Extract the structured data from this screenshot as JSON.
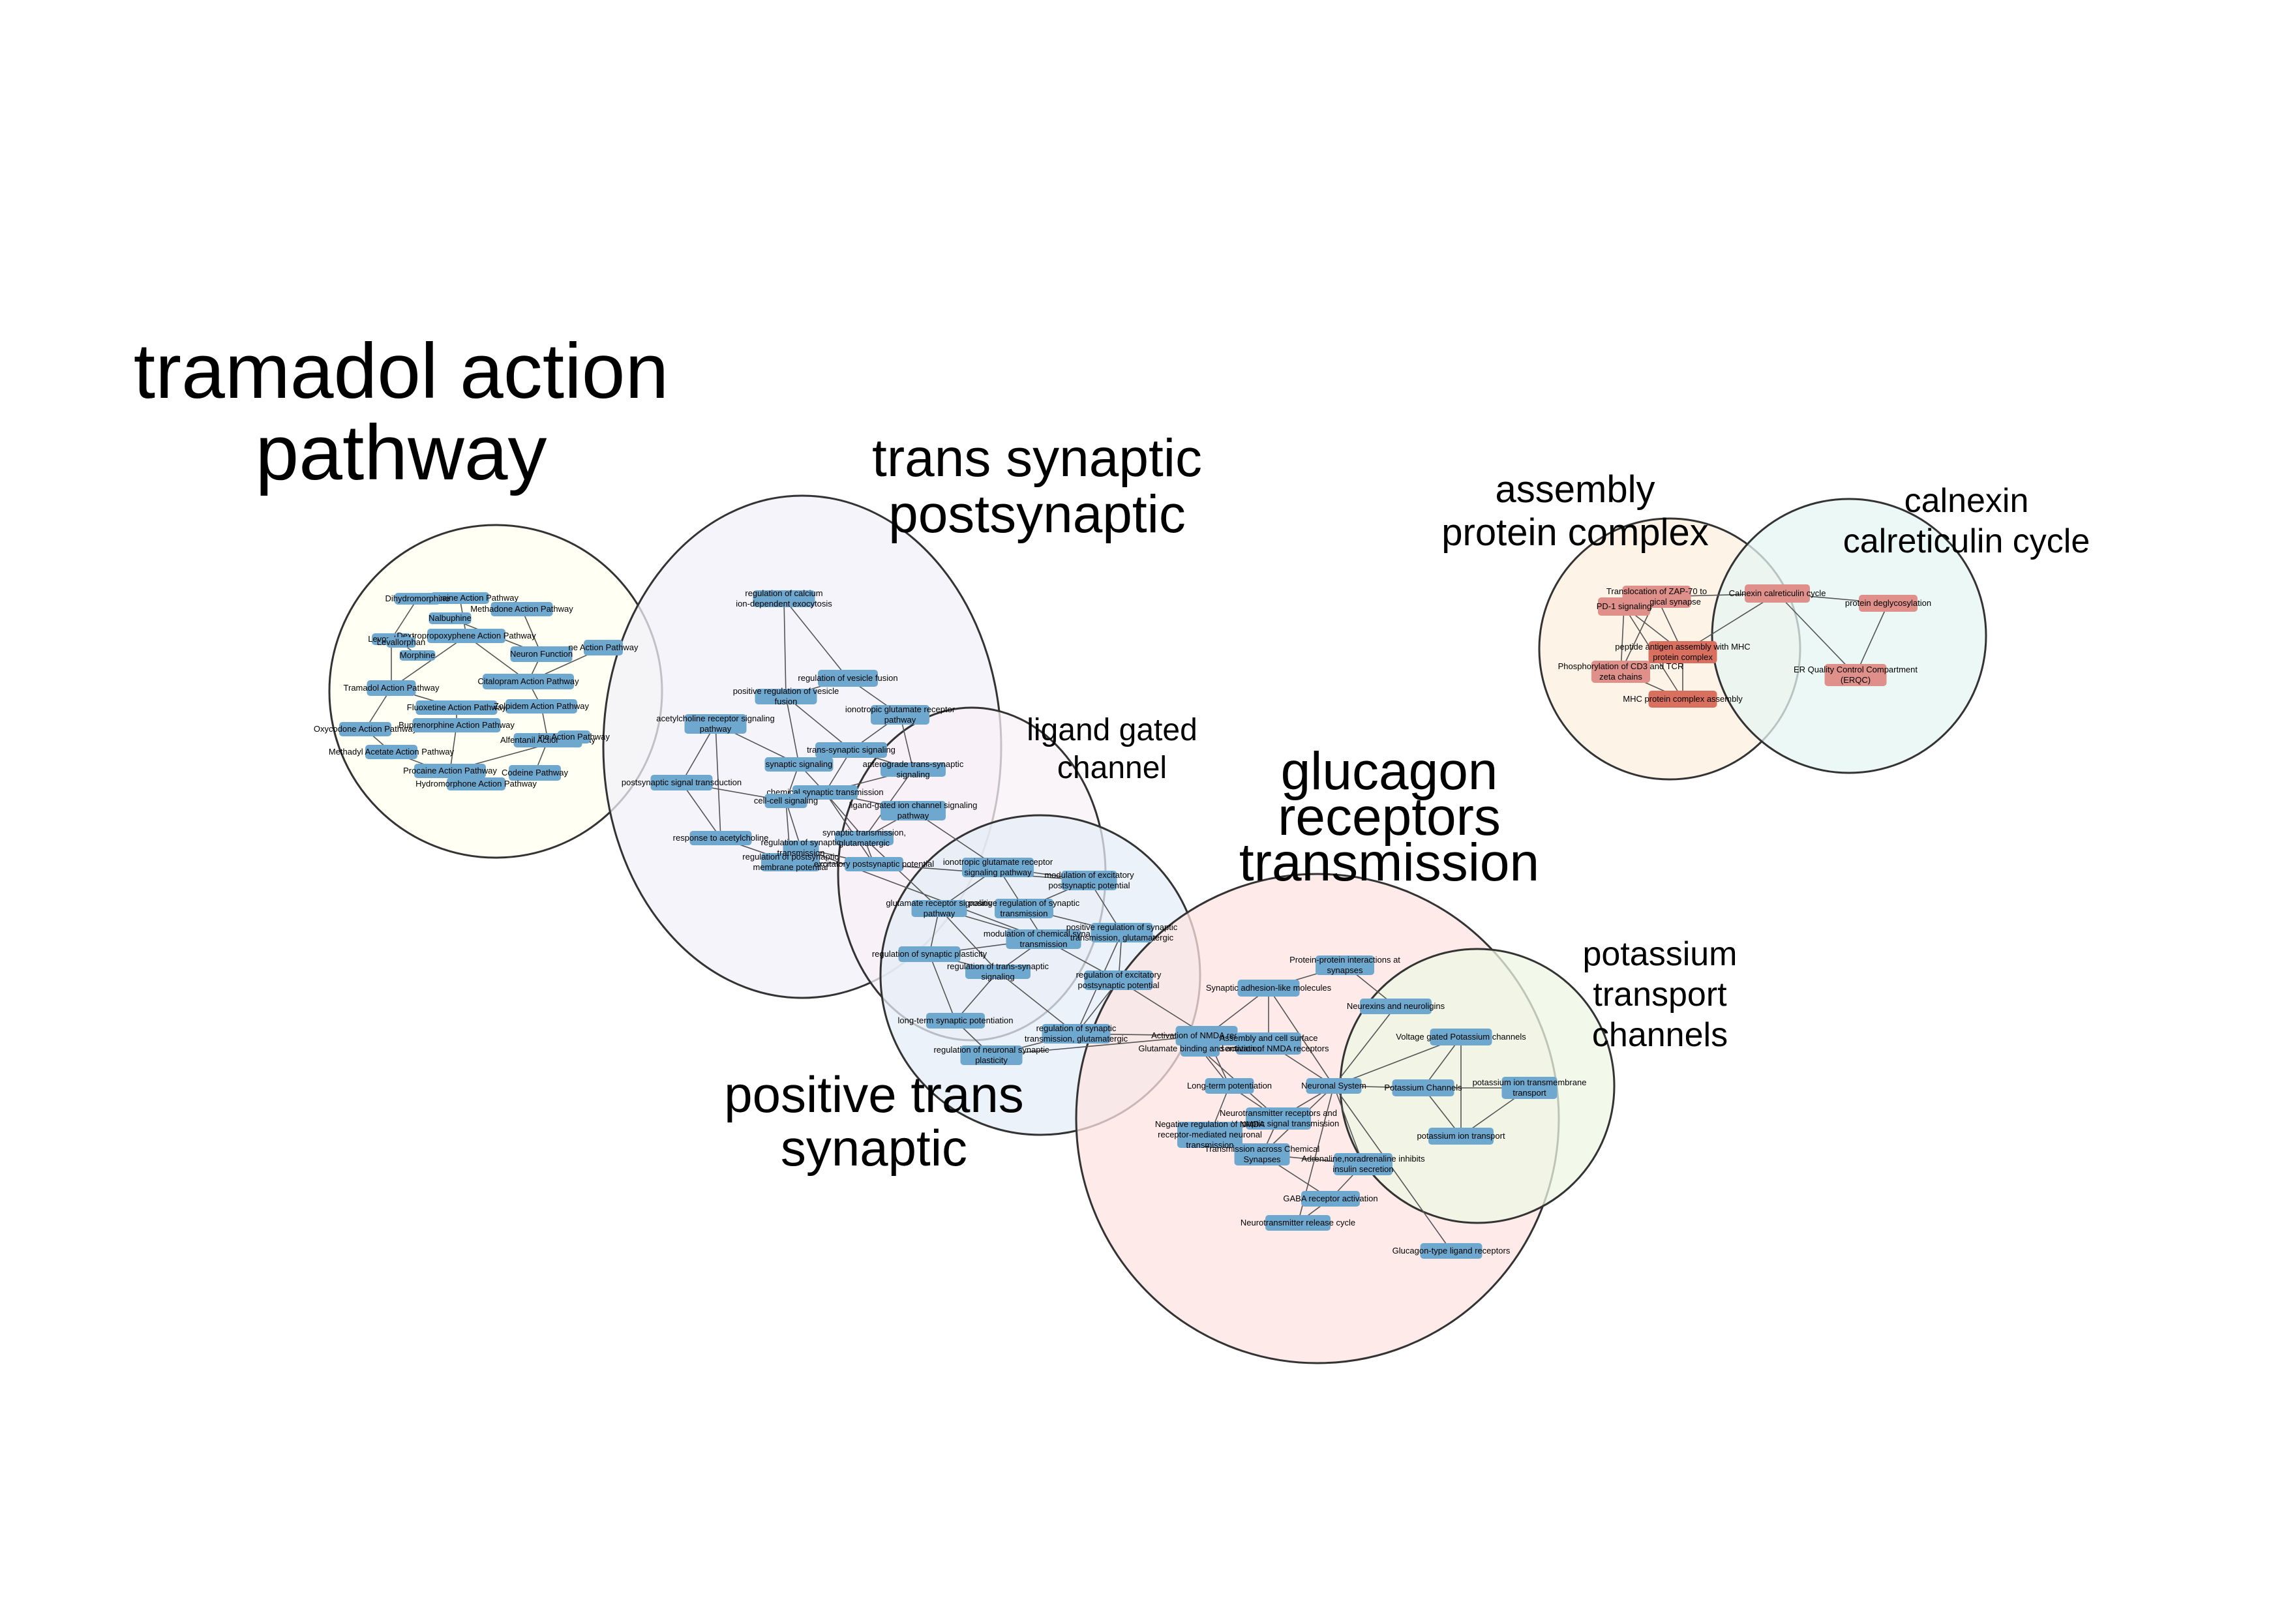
{
  "colors": {
    "node_blue": "#6fa8cf",
    "node_red": "#e0908a",
    "node_red_dark": "#d9705f",
    "edge": "#555555",
    "circle_stroke": "#333333"
  },
  "clusters": [
    {
      "id": "tramadol",
      "fill": "#fffff0",
      "label_lines": [
        "tramadol action",
        "pathway"
      ]
    },
    {
      "id": "trans_syn_post",
      "fill": "#f1f0f8",
      "label_lines": [
        "trans synaptic",
        "postsynaptic"
      ]
    },
    {
      "id": "ligand_gated",
      "fill": "#f8f1f7",
      "label_lines": [
        "ligand gated",
        "channel"
      ]
    },
    {
      "id": "positive_trans",
      "fill": "#e6eef7",
      "label_lines": [
        "positive trans",
        "synaptic"
      ]
    },
    {
      "id": "glucagon",
      "fill": "#fde4e2",
      "label_lines": [
        "glucagon",
        "receptors",
        "transmission"
      ]
    },
    {
      "id": "potassium",
      "fill": "#eef7e4",
      "label_lines": [
        "potassium",
        "transport",
        "channels"
      ]
    },
    {
      "id": "assembly",
      "fill": "#fdefdf",
      "label_lines": [
        "assembly",
        "protein complex"
      ]
    },
    {
      "id": "calnexin",
      "fill": "#e6f5f1",
      "label_lines": [
        "calnexin",
        "calreticulin cycle"
      ]
    }
  ],
  "nodes": [
    {
      "id": "t1",
      "label": "Oxybuprocaine Action Pathway",
      "color": "blue"
    },
    {
      "id": "t2",
      "label": "Dihydromorphine",
      "color": "blue"
    },
    {
      "id": "t3",
      "label": "Methadone Action Pathway",
      "color": "blue"
    },
    {
      "id": "t4",
      "label": "Nalbuphine",
      "color": "blue"
    },
    {
      "id": "t5",
      "label": "Levorphanol",
      "color": "blue"
    },
    {
      "id": "t6",
      "label": "Dextropropoxyphene Action Pathway",
      "color": "blue"
    },
    {
      "id": "t7",
      "label": "Neuron Function",
      "color": "blue"
    },
    {
      "id": "t8",
      "label": "ne Action Pathway",
      "color": "blue"
    },
    {
      "id": "t9",
      "label": "Tramadol Action Pathway",
      "color": "blue"
    },
    {
      "id": "t10",
      "label": "Citalopram Action Pathway",
      "color": "blue"
    },
    {
      "id": "t11",
      "label": "Fluoxetine Action Pathway",
      "color": "blue"
    },
    {
      "id": "t12",
      "label": "Zolpidem Action Pathway",
      "color": "blue"
    },
    {
      "id": "t13",
      "label": "Oxycodone Action Pathway",
      "color": "blue"
    },
    {
      "id": "t14",
      "label": "Buprenorphine Action Pathway",
      "color": "blue"
    },
    {
      "id": "t15",
      "label": "Methadyl Acetate Action Pathway",
      "color": "blue"
    },
    {
      "id": "t16",
      "label": "Alfentanil Action Pathway",
      "color": "blue"
    },
    {
      "id": "t17",
      "label": "Procaine Action Pathway",
      "color": "blue"
    },
    {
      "id": "t18",
      "label": "Codeine Pathway",
      "color": "blue"
    },
    {
      "id": "t19",
      "label": "Hydromorphone Action Pathway",
      "color": "blue"
    },
    {
      "id": "t20",
      "label": "Levallorphan",
      "color": "blue"
    },
    {
      "id": "t21",
      "label": "Morphine",
      "color": "blue"
    },
    {
      "id": "t22",
      "label": "ine Action Pathway",
      "color": "blue"
    },
    {
      "id": "s1",
      "label": "regulation of calcium ion-dependent exocytosis",
      "color": "blue"
    },
    {
      "id": "s2",
      "label": "regulation of vesicle fusion",
      "color": "blue"
    },
    {
      "id": "s3",
      "label": "positive regulation of vesicle fusion",
      "color": "blue"
    },
    {
      "id": "s4",
      "label": "ionotropic glutamate receptor pathway",
      "color": "blue"
    },
    {
      "id": "s5",
      "label": "acetylcholine receptor signaling pathway",
      "color": "blue"
    },
    {
      "id": "s6",
      "label": "trans-synaptic signaling",
      "color": "blue"
    },
    {
      "id": "s7",
      "label": "synaptic signaling",
      "color": "blue"
    },
    {
      "id": "s8",
      "label": "anterograde trans-synaptic signaling",
      "color": "blue"
    },
    {
      "id": "s9",
      "label": "postsynaptic signal transduction",
      "color": "blue"
    },
    {
      "id": "s10",
      "label": "chemical synaptic transmission",
      "color": "blue"
    },
    {
      "id": "s11",
      "label": "cell-cell signaling",
      "color": "blue"
    },
    {
      "id": "s12",
      "label": "ligand-gated ion channel signaling pathway",
      "color": "blue"
    },
    {
      "id": "s13",
      "label": "response to acetylcholine",
      "color": "blue"
    },
    {
      "id": "s14",
      "label": "synaptic transmission, glutamatergic",
      "color": "blue"
    },
    {
      "id": "s15",
      "label": "regulation of postsynaptic membrane potential",
      "color": "blue"
    },
    {
      "id": "s16",
      "label": "excitatory postsynaptic potential",
      "color": "blue"
    },
    {
      "id": "s17",
      "label": "regulation of synaptic transmission",
      "color": "blue"
    },
    {
      "id": "p1",
      "label": "ionotropic glutamate receptor signaling pathway",
      "color": "blue"
    },
    {
      "id": "p2",
      "label": "modulation of excitatory postsynaptic potential",
      "color": "blue"
    },
    {
      "id": "p3",
      "label": "glutamate receptor signaling pathway",
      "color": "blue"
    },
    {
      "id": "p4",
      "label": "positive regulation of synaptic transmission",
      "color": "blue"
    },
    {
      "id": "p5",
      "label": "modulation of chemical synaptic transmission",
      "color": "blue"
    },
    {
      "id": "p6",
      "label": "positive regulation of synaptic transmission, glutamatergic",
      "color": "blue"
    },
    {
      "id": "p7",
      "label": "regulation of synaptic plasticity",
      "color": "blue"
    },
    {
      "id": "p8",
      "label": "regulation of trans-synaptic signaling",
      "color": "blue"
    },
    {
      "id": "p9",
      "label": "regulation of excitatory postsynaptic potential",
      "color": "blue"
    },
    {
      "id": "p10",
      "label": "long-term synaptic potentiation",
      "color": "blue"
    },
    {
      "id": "p11",
      "label": "regulation of synaptic transmission, glutamatergic",
      "color": "blue"
    },
    {
      "id": "p12",
      "label": "regulation of neuronal synaptic plasticity",
      "color": "blue"
    },
    {
      "id": "g1",
      "label": "Protein-protein interactions at synapses",
      "color": "blue"
    },
    {
      "id": "g2",
      "label": "Synaptic adhesion-like molecules",
      "color": "blue"
    },
    {
      "id": "g3",
      "label": "Neurexins and neuroligins",
      "color": "blue"
    },
    {
      "id": "g4",
      "label": "Activation of NMDA receptors",
      "color": "blue"
    },
    {
      "id": "g5",
      "label": "Assembly and cell surface presentation of NMDA receptors",
      "color": "blue"
    },
    {
      "id": "g6",
      "label": "Glutamate binding and activation",
      "color": "blue"
    },
    {
      "id": "g7",
      "label": "Voltage gated Potassium channels",
      "color": "blue"
    },
    {
      "id": "g8",
      "label": "Long-term potentiation",
      "color": "blue"
    },
    {
      "id": "g9",
      "label": "Neuronal System",
      "color": "blue"
    },
    {
      "id": "g10",
      "label": "Potassium Channels",
      "color": "blue"
    },
    {
      "id": "g11",
      "label": "potassium ion transmembrane transport",
      "color": "blue"
    },
    {
      "id": "g12",
      "label": "Neurotransmitter receptors and postsynaptic signal transmission",
      "color": "blue"
    },
    {
      "id": "g13",
      "label": "Negative regulation of NMDA receptor-mediated neuronal transmission",
      "color": "blue"
    },
    {
      "id": "g14",
      "label": "potassium ion transport",
      "color": "blue"
    },
    {
      "id": "g15",
      "label": "Transmission across Chemical Synapses",
      "color": "blue"
    },
    {
      "id": "g16",
      "label": "Adrenaline,noradrenaline inhibits insulin secretion",
      "color": "blue"
    },
    {
      "id": "g17",
      "label": "GABA receptor activation",
      "color": "blue"
    },
    {
      "id": "g18",
      "label": "Neurotransmitter release cycle",
      "color": "blue"
    },
    {
      "id": "g19",
      "label": "Glucagon-type ligand receptors",
      "color": "blue"
    },
    {
      "id": "a1",
      "label": "Translocation of ZAP-70 to Immunological synapse",
      "color": "red"
    },
    {
      "id": "a2",
      "label": "PD-1 signaling",
      "color": "red"
    },
    {
      "id": "a3",
      "label": "peptide antigen assembly with MHC protein complex",
      "color": "red_dark"
    },
    {
      "id": "a4",
      "label": "Phosphorylation of CD3 and TCR zeta chains",
      "color": "red"
    },
    {
      "id": "a5",
      "label": "MHC protein complex assembly",
      "color": "red_dark"
    },
    {
      "id": "c1",
      "label": "Calnexin calreticulin cycle",
      "color": "red"
    },
    {
      "id": "c2",
      "label": "protein deglycosylation",
      "color": "red"
    },
    {
      "id": "c3",
      "label": "ER Quality Control Compartment (ERQC)",
      "color": "red"
    }
  ],
  "edges": [
    [
      "t1",
      "t6"
    ],
    [
      "t3",
      "t7"
    ],
    [
      "t6",
      "t9"
    ],
    [
      "t7",
      "t10"
    ],
    [
      "t9",
      "t11"
    ],
    [
      "t10",
      "t12"
    ],
    [
      "t11",
      "t14"
    ],
    [
      "t12",
      "t16"
    ],
    [
      "t13",
      "t15"
    ],
    [
      "t14",
      "t17"
    ],
    [
      "t15",
      "t19"
    ],
    [
      "t16",
      "t18"
    ],
    [
      "t2",
      "t5"
    ],
    [
      "t4",
      "t7"
    ],
    [
      "t8",
      "t10"
    ],
    [
      "t20",
      "t21"
    ],
    [
      "t22",
      "t17"
    ],
    [
      "t6",
      "t10"
    ],
    [
      "t9",
      "t13"
    ],
    [
      "t5",
      "t9"
    ],
    [
      "s1",
      "s3"
    ],
    [
      "s1",
      "s2"
    ],
    [
      "s2",
      "s3"
    ],
    [
      "s2",
      "s4"
    ],
    [
      "s3",
      "s6"
    ],
    [
      "s3",
      "s7"
    ],
    [
      "s4",
      "s8"
    ],
    [
      "s5",
      "s9"
    ],
    [
      "s5",
      "s7"
    ],
    [
      "s6",
      "s7"
    ],
    [
      "s6",
      "s8"
    ],
    [
      "s6",
      "s10"
    ],
    [
      "s7",
      "s10"
    ],
    [
      "s7",
      "s11"
    ],
    [
      "s8",
      "s10"
    ],
    [
      "s9",
      "s11"
    ],
    [
      "s9",
      "s13"
    ],
    [
      "s10",
      "s12"
    ],
    [
      "s10",
      "s14"
    ],
    [
      "s11",
      "s15"
    ],
    [
      "s12",
      "s14"
    ],
    [
      "s13",
      "s15"
    ],
    [
      "s14",
      "s16"
    ],
    [
      "s15",
      "s16"
    ],
    [
      "s16",
      "s17"
    ],
    [
      "s8",
      "s14"
    ],
    [
      "s4",
      "s6"
    ],
    [
      "s5",
      "s13"
    ],
    [
      "s11",
      "s17"
    ],
    [
      "s10",
      "s16"
    ],
    [
      "s12",
      "p1"
    ],
    [
      "s14",
      "p3"
    ],
    [
      "s16",
      "p2"
    ],
    [
      "s17",
      "p5"
    ],
    [
      "p1",
      "p2"
    ],
    [
      "p1",
      "p3"
    ],
    [
      "p1",
      "p4"
    ],
    [
      "p2",
      "p4"
    ],
    [
      "p2",
      "p6"
    ],
    [
      "p3",
      "p5"
    ],
    [
      "p3",
      "p7"
    ],
    [
      "p4",
      "p5"
    ],
    [
      "p4",
      "p6"
    ],
    [
      "p5",
      "p7"
    ],
    [
      "p5",
      "p8"
    ],
    [
      "p5",
      "p9"
    ],
    [
      "p6",
      "p9"
    ],
    [
      "p7",
      "p10"
    ],
    [
      "p8",
      "p10"
    ],
    [
      "p8",
      "p11"
    ],
    [
      "p9",
      "p11"
    ],
    [
      "p10",
      "p12"
    ],
    [
      "p11",
      "p12"
    ],
    [
      "p7",
      "p8"
    ],
    [
      "p6",
      "p11"
    ],
    [
      "p3",
      "p8"
    ],
    [
      "p11",
      "g4"
    ],
    [
      "p9",
      "g4"
    ],
    [
      "p12",
      "g4"
    ],
    [
      "g1",
      "g2"
    ],
    [
      "g1",
      "g3"
    ],
    [
      "g2",
      "g4"
    ],
    [
      "g2",
      "g5"
    ],
    [
      "g3",
      "g9"
    ],
    [
      "g4",
      "g5"
    ],
    [
      "g4",
      "g6"
    ],
    [
      "g4",
      "g8"
    ],
    [
      "g5",
      "g9"
    ],
    [
      "g6",
      "g8"
    ],
    [
      "g7",
      "g10"
    ],
    [
      "g7",
      "g9"
    ],
    [
      "g8",
      "g12"
    ],
    [
      "g8",
      "g13"
    ],
    [
      "g9",
      "g10"
    ],
    [
      "g9",
      "g12"
    ],
    [
      "g9",
      "g15"
    ],
    [
      "g10",
      "g11"
    ],
    [
      "g10",
      "g14"
    ],
    [
      "g11",
      "g14"
    ],
    [
      "g12",
      "g15"
    ],
    [
      "g13",
      "g15"
    ],
    [
      "g15",
      "g16"
    ],
    [
      "g15",
      "g17"
    ],
    [
      "g16",
      "g17"
    ],
    [
      "g17",
      "g18"
    ],
    [
      "g9",
      "g19"
    ],
    [
      "g9",
      "g16"
    ],
    [
      "g12",
      "g13"
    ],
    [
      "g6",
      "g12"
    ],
    [
      "g7",
      "g14"
    ],
    [
      "g9",
      "g18"
    ],
    [
      "g2",
      "g9"
    ],
    [
      "a1",
      "a2"
    ],
    [
      "a1",
      "a3"
    ],
    [
      "a2",
      "a4"
    ],
    [
      "a2",
      "a3"
    ],
    [
      "a3",
      "a4"
    ],
    [
      "a3",
      "a5"
    ],
    [
      "a4",
      "a5"
    ],
    [
      "a1",
      "a4"
    ],
    [
      "a2",
      "a5"
    ],
    [
      "a1",
      "c1"
    ],
    [
      "a3",
      "c1"
    ],
    [
      "c1",
      "c2"
    ],
    [
      "c1",
      "c3"
    ],
    [
      "c2",
      "c3"
    ]
  ]
}
